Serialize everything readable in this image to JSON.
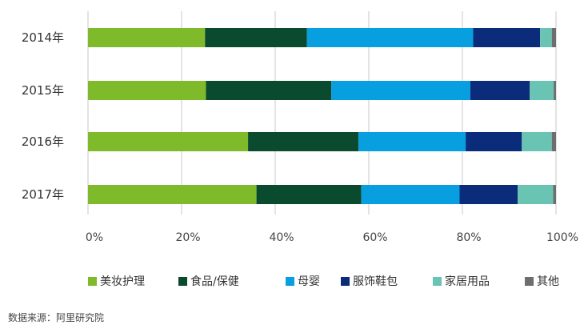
{
  "chart_data": {
    "type": "bar",
    "orientation": "horizontal",
    "stacked": true,
    "categories": [
      "2014年",
      "2015年",
      "2016年",
      "2017年"
    ],
    "series": [
      {
        "name": "美妆护理",
        "color": "#7fba2b",
        "values": [
          25.0,
          25.2,
          34.2,
          36.0
        ]
      },
      {
        "name": "食品/保健",
        "color": "#0a4a2f",
        "values": [
          21.8,
          26.8,
          23.6,
          22.4
        ]
      },
      {
        "name": "母婴",
        "color": "#079fe0",
        "values": [
          35.5,
          29.7,
          22.9,
          21.0
        ]
      },
      {
        "name": "服饰鞋包",
        "color": "#0a2c7a",
        "values": [
          14.3,
          12.7,
          12.0,
          12.4
        ]
      },
      {
        "name": "家居用品",
        "color": "#69c4b4",
        "values": [
          2.5,
          5.1,
          6.4,
          7.6
        ]
      },
      {
        "name": "其他",
        "color": "#6e6e6e",
        "values": [
          0.9,
          0.5,
          0.9,
          0.6
        ]
      }
    ],
    "xlim": [
      0,
      100
    ],
    "xticks": [
      "0%",
      "20%",
      "40%",
      "60%",
      "80%",
      "100%"
    ],
    "grid": "vertical",
    "legend": "bottom"
  },
  "source_note": "数据来源：阿里研究院"
}
